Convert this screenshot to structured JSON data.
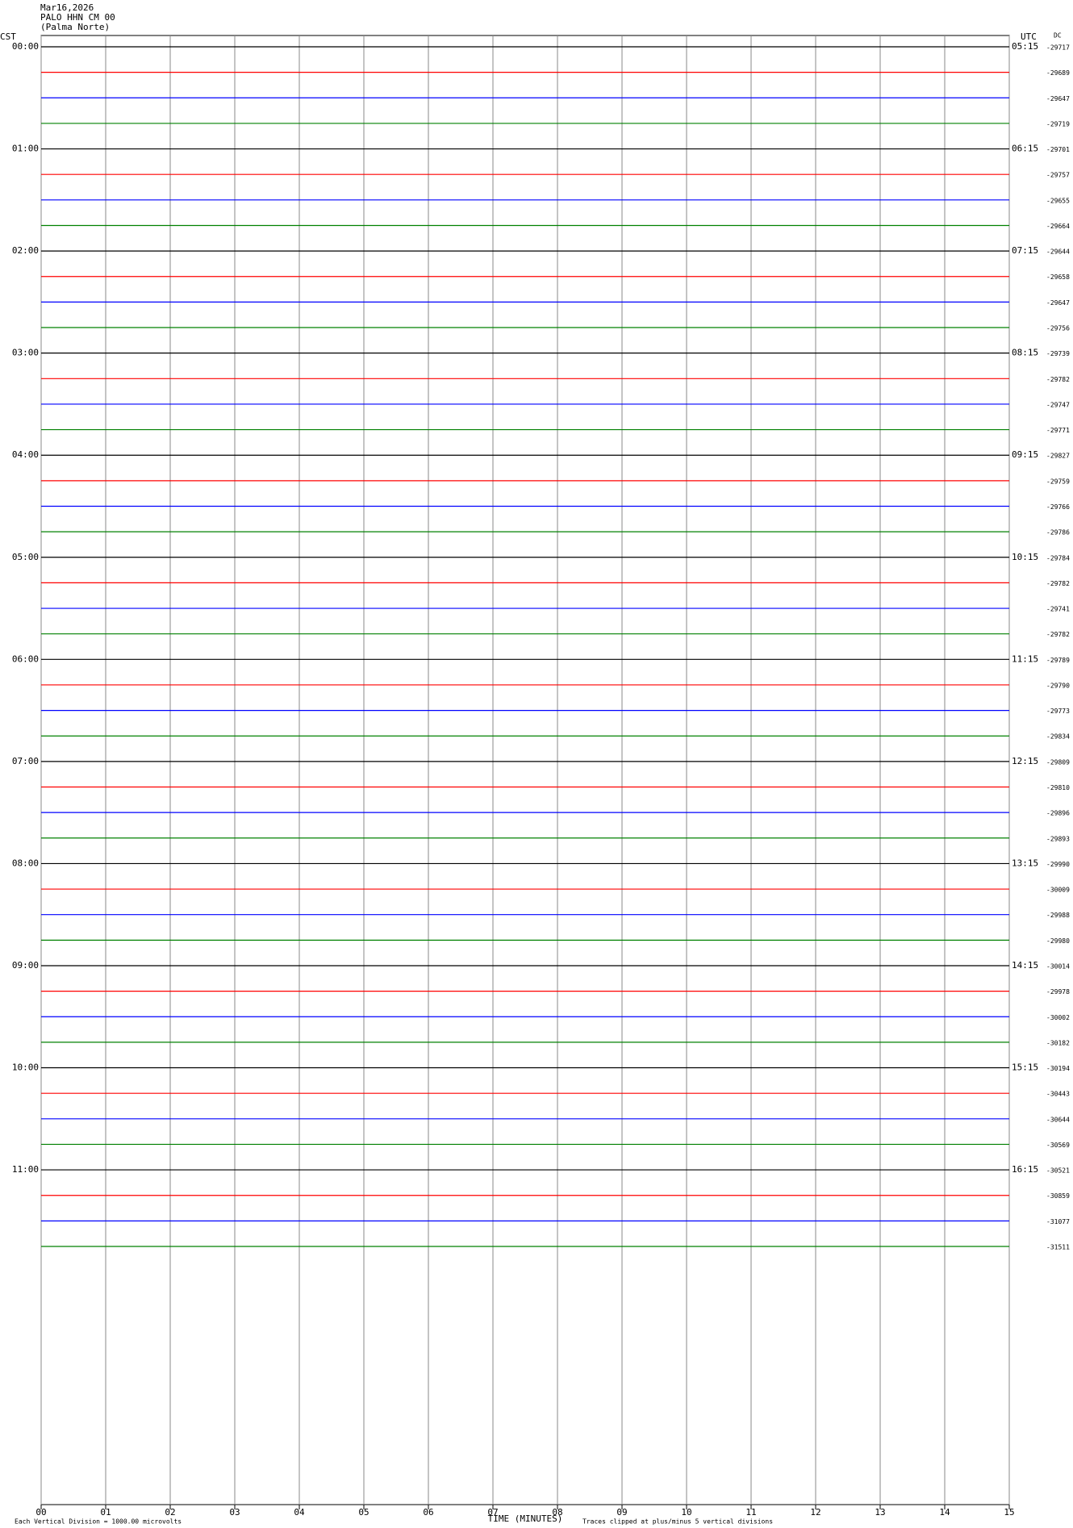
{
  "chart_data": {
    "type": "helicorder",
    "title": "Mar16,2026",
    "subtitle": "PALO HHN CM 00",
    "location": "(Palma Norte)",
    "left_axis_label": "CST",
    "right_axis_label": "UTC",
    "dc_label": "DC",
    "xlabel": "TIME (MINUTES)",
    "scale_note": "Each Vertical Division = 1000.00 microvolts",
    "clip_note": "Traces clipped at plus/minus 5 vertical divisions",
    "xlim": [
      0,
      15
    ],
    "xticks": [
      {
        "value": 0,
        "label": "00"
      },
      {
        "value": 1,
        "label": "01"
      },
      {
        "value": 2,
        "label": "02"
      },
      {
        "value": 3,
        "label": "03"
      },
      {
        "value": 4,
        "label": "04"
      },
      {
        "value": 5,
        "label": "05"
      },
      {
        "value": 6,
        "label": "06"
      },
      {
        "value": 7,
        "label": "07"
      },
      {
        "value": 8,
        "label": "08"
      },
      {
        "value": 9,
        "label": "09"
      },
      10,
      11,
      12,
      13,
      14,
      15
    ],
    "grid": true,
    "colors": [
      "#000000",
      "#ff0000",
      "#0000ff",
      "#008000"
    ],
    "hour_labels_cst": [
      "00:00",
      "01:00",
      "02:00",
      "03:00",
      "04:00",
      "05:00",
      "06:00",
      "07:00",
      "08:00",
      "09:00",
      "10:00",
      "11:00"
    ],
    "hour_labels_utc": [
      "05:15",
      "06:15",
      "07:15",
      "08:15",
      "09:15",
      "10:15",
      "11:15",
      "12:15",
      "13:15",
      "14:15",
      "15:15",
      "16:15"
    ],
    "dc_values": [
      -29717,
      -29689,
      -29647,
      -29719,
      -29701,
      -29757,
      -29655,
      -29664,
      -29644,
      -29658,
      -29647,
      -29756,
      -29739,
      -29782,
      -29747,
      -29771,
      -29827,
      -29759,
      -29766,
      -29786,
      -29784,
      -29782,
      -29741,
      -29782,
      -29789,
      -29790,
      -29773,
      -29834,
      -29809,
      -29810,
      -29896,
      -29893,
      -29990,
      -30009,
      -29988,
      -29980,
      -30014,
      -29978,
      -30002,
      -30182,
      -30194,
      -30443,
      -30644,
      -30569,
      -30521,
      -30859,
      -31077,
      -31511
    ]
  }
}
